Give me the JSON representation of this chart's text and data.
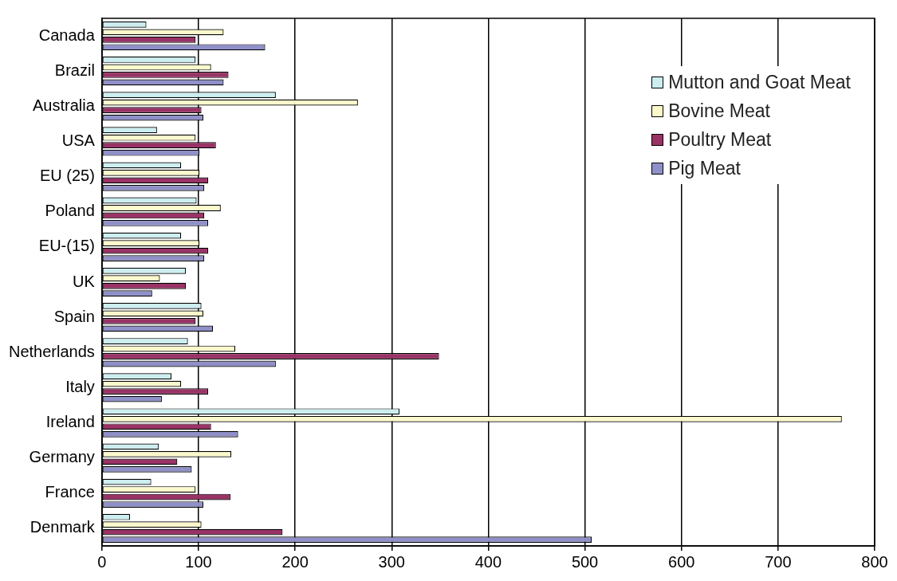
{
  "chart_data": {
    "type": "bar",
    "orientation": "horizontal",
    "categories": [
      "Canada",
      "Brazil",
      "Australia",
      "USA",
      "EU (25)",
      "Poland",
      "EU-(15)",
      "UK",
      "Spain",
      "Netherlands",
      "Italy",
      "Ireland",
      "Germany",
      "France",
      "Denmark"
    ],
    "series": [
      {
        "name": "Mutton and Goat Meat",
        "color": "#cdeef0",
        "values": [
          46,
          97,
          180,
          57,
          82,
          98,
          82,
          87,
          103,
          89,
          72,
          308,
          59,
          51,
          29
        ]
      },
      {
        "name": "Bovine Meat",
        "color": "#fbf8cc",
        "values": [
          126,
          113,
          265,
          97,
          101,
          123,
          101,
          60,
          105,
          138,
          82,
          766,
          134,
          97,
          103
        ]
      },
      {
        "name": "Poultry Meat",
        "color": "#993366",
        "values": [
          97,
          131,
          103,
          118,
          110,
          106,
          110,
          87,
          97,
          349,
          110,
          113,
          78,
          133,
          187
        ]
      },
      {
        "name": "Pig Meat",
        "color": "#9090c8",
        "values": [
          169,
          126,
          105,
          101,
          106,
          110,
          106,
          52,
          115,
          180,
          62,
          141,
          93,
          105,
          507
        ]
      }
    ],
    "xlim": [
      0,
      800
    ],
    "xticks": [
      0,
      100,
      200,
      300,
      400,
      500,
      600,
      700,
      800
    ],
    "grid": "x",
    "legend": "top right"
  }
}
